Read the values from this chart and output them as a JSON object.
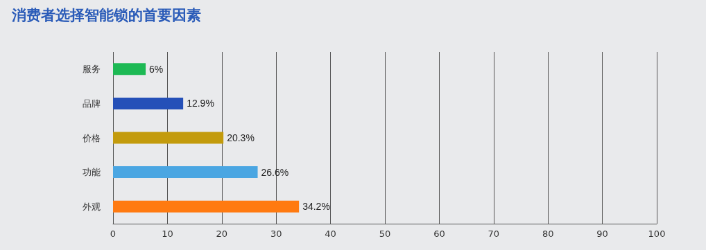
{
  "chart_data": {
    "type": "bar",
    "orientation": "horizontal",
    "title": "消费者选择智能锁的首要因素",
    "categories": [
      "服务",
      "品牌",
      "价格",
      "功能",
      "外观"
    ],
    "values": [
      6,
      12.9,
      20.3,
      26.6,
      34.2
    ],
    "colors": [
      "#1db954",
      "#2550b8",
      "#c39b0c",
      "#4aa6e2",
      "#ff7a10"
    ],
    "value_labels": [
      "6%",
      "12.9%",
      "20.3%",
      "26.6%",
      "34.2%"
    ],
    "xlim": [
      0,
      100
    ],
    "xticks": [
      0,
      10,
      20,
      30,
      40,
      50,
      60,
      70,
      80,
      90,
      100
    ],
    "grid": "x"
  }
}
